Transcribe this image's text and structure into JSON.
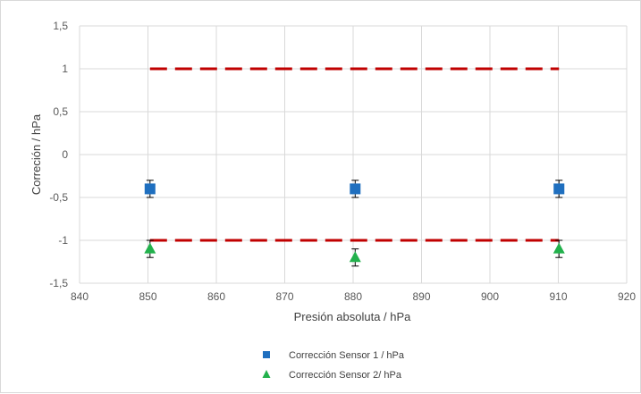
{
  "chart_data": {
    "type": "scatter",
    "title": "",
    "xlabel": "Presión absoluta / hPa",
    "ylabel": "Correción / hPa",
    "xlim": [
      840,
      920
    ],
    "ylim": [
      -1.5,
      1.5
    ],
    "x_ticks": [
      840,
      850,
      860,
      870,
      880,
      890,
      900,
      910,
      920
    ],
    "x_tick_labels": [
      "840",
      "850",
      "860",
      "870",
      "880",
      "890",
      "900",
      "910",
      "920"
    ],
    "y_ticks": [
      1.5,
      1,
      0.5,
      0,
      -0.5,
      -1,
      -1.5
    ],
    "y_tick_labels": [
      "1,5",
      "1",
      "0,5",
      "0",
      "-0,5",
      "-1",
      "-1,5"
    ],
    "grid": true,
    "legend_position": "bottom",
    "series": [
      {
        "name": "Corrección Sensor 1 / hPa",
        "marker": "square",
        "color": "#1f6fbf",
        "x": [
          850.3,
          880.3,
          910.1
        ],
        "y": [
          -0.4,
          -0.4,
          -0.4
        ],
        "error": [
          0.1,
          0.1,
          0.1
        ]
      },
      {
        "name": "Corrección Sensor 2/ hPa",
        "marker": "triangle",
        "color": "#22b14c",
        "x": [
          850.3,
          880.3,
          910.1
        ],
        "y": [
          -1.1,
          -1.2,
          -1.1
        ],
        "error": [
          0.1,
          0.1,
          0.1
        ]
      }
    ],
    "reference_lines": [
      {
        "y": 1,
        "x_start": 850.3,
        "x_end": 910.1,
        "color": "#c00000",
        "style": "dashed"
      },
      {
        "y": -1,
        "x_start": 850.3,
        "x_end": 910.1,
        "color": "#c00000",
        "style": "dashed"
      }
    ]
  }
}
